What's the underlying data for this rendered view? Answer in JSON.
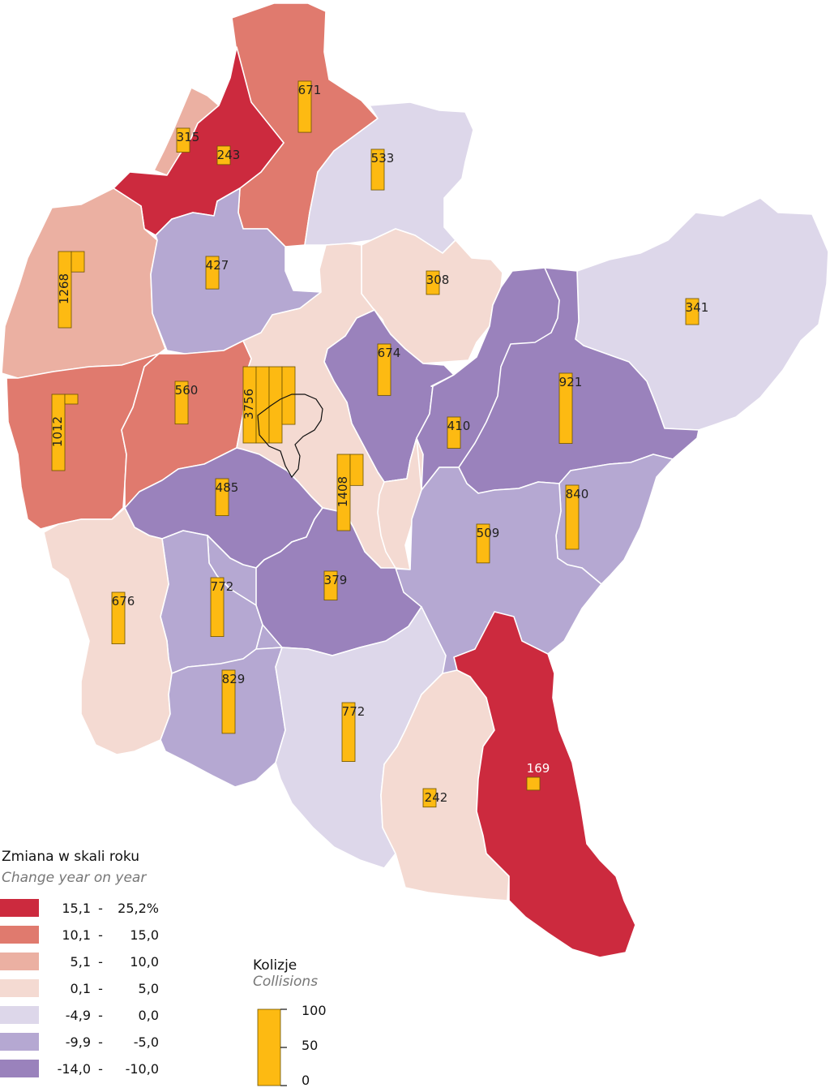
{
  "legend": {
    "title": "Zmiana w skali roku",
    "subtitle": "Change year on year",
    "classes": [
      {
        "lo": "15,1",
        "hi": "25,2%",
        "color": "#CC2A3E"
      },
      {
        "lo": "10,1",
        "hi": "15,0",
        "color": "#E07A6E"
      },
      {
        "lo": "5,1",
        "hi": "10,0",
        "color": "#EBB0A2"
      },
      {
        "lo": "0,1",
        "hi": "5,0",
        "color": "#F4DAD2"
      },
      {
        "lo": "-4,9",
        "hi": "0,0",
        "color": "#DDD7EA"
      },
      {
        "lo": "-9,9",
        "hi": "-5,0",
        "color": "#B5A8D2"
      },
      {
        "lo": "-14,0",
        "hi": "-10,0",
        "color": "#9A82BC"
      }
    ]
  },
  "bar_legend": {
    "title": "Kolizje",
    "subtitle": "Collisions",
    "scale_labels": [
      "100",
      "50",
      "0"
    ],
    "bar_color": "#FDBA12"
  },
  "districts": [
    {
      "collisions": 671,
      "class": 1
    },
    {
      "collisions": 315,
      "class": 2
    },
    {
      "collisions": 243,
      "class": 0
    },
    {
      "collisions": 533,
      "class": 4
    },
    {
      "collisions": 1268,
      "class": 2
    },
    {
      "collisions": 427,
      "class": 5
    },
    {
      "collisions": 308,
      "class": 3
    },
    {
      "collisions": 341,
      "class": 4
    },
    {
      "collisions": 674,
      "class": 6
    },
    {
      "collisions": 921,
      "class": 6
    },
    {
      "collisions": 1012,
      "class": 1
    },
    {
      "collisions": 560,
      "class": 1
    },
    {
      "collisions": 3756,
      "class": 3
    },
    {
      "collisions": 410,
      "class": 6
    },
    {
      "collisions": 1408,
      "class": 3
    },
    {
      "collisions": 485,
      "class": 6
    },
    {
      "collisions": 840,
      "class": 5
    },
    {
      "collisions": 509,
      "class": 5
    },
    {
      "collisions": 772,
      "class": 5
    },
    {
      "collisions": 676,
      "class": 3
    },
    {
      "collisions": 379,
      "class": 6
    },
    {
      "collisions": 829,
      "class": 5
    },
    {
      "collisions": 772,
      "class": 4
    },
    {
      "collisions": 242,
      "class": 3
    },
    {
      "collisions": 169,
      "class": 0
    }
  ]
}
